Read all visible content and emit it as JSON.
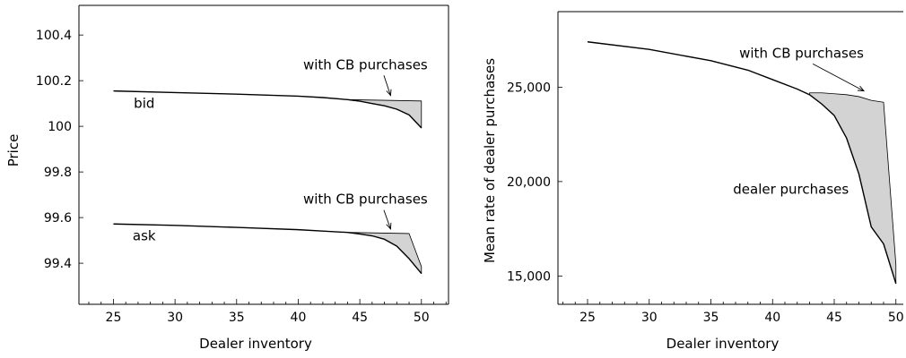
{
  "chart_data": [
    {
      "type": "line",
      "title": "",
      "xlabel": "Dealer inventory",
      "ylabel": "Price",
      "xlim": [
        22.2,
        52.2
      ],
      "ylim": [
        99.22,
        100.53
      ],
      "x_ticks": [
        25,
        30,
        35,
        40,
        45,
        50
      ],
      "x_tick_labels": [
        "25",
        "30",
        "35",
        "40",
        "45",
        "50"
      ],
      "y_ticks": [
        99.4,
        99.6,
        99.8,
        100,
        100.2,
        100.4
      ],
      "y_tick_labels": [
        "99.4",
        "99.6",
        "99.8",
        "100",
        "100.2",
        "100.4"
      ],
      "grid": false,
      "series": [
        {
          "name": "bid",
          "x": [
            25,
            30,
            35,
            40,
            42,
            44,
            45,
            46,
            47,
            48,
            49,
            50
          ],
          "y": [
            100.155,
            100.148,
            100.141,
            100.132,
            100.126,
            100.117,
            100.11,
            100.1,
            100.09,
            100.075,
            100.05,
            99.993
          ],
          "cb_x": [
            44,
            45,
            46,
            47,
            48,
            49,
            50
          ],
          "cb_y": [
            100.117,
            100.116,
            100.115,
            100.114,
            100.113,
            100.112,
            100.111
          ]
        },
        {
          "name": "ask",
          "x": [
            25,
            30,
            35,
            40,
            42,
            44,
            45,
            46,
            47,
            48,
            49,
            50
          ],
          "y": [
            99.572,
            99.566,
            99.557,
            99.547,
            99.541,
            99.535,
            99.528,
            99.52,
            99.505,
            99.475,
            99.42,
            99.355
          ],
          "cb_x": [
            44,
            45,
            46,
            47,
            48,
            49,
            50
          ],
          "cb_y": [
            99.535,
            99.534,
            99.533,
            99.532,
            99.531,
            99.53,
            99.385
          ]
        }
      ],
      "annotations": [
        {
          "text": "bid",
          "x": 27.5,
          "y": 100.1
        },
        {
          "text": "ask",
          "x": 27.5,
          "y": 99.52
        },
        {
          "text": "with CB purchases",
          "x": 40.4,
          "y": 100.27,
          "arrow_to": [
            47.5,
            100.135
          ]
        },
        {
          "text": "with CB purchases",
          "x": 40.4,
          "y": 99.68,
          "arrow_to": [
            47.5,
            99.55
          ]
        }
      ]
    },
    {
      "type": "line",
      "title": "",
      "xlabel": "Dealer inventory",
      "ylabel": "Mean rate of dealer purchases",
      "xlim": [
        22.6,
        50.6
      ],
      "ylim": [
        13500,
        29000
      ],
      "x_ticks": [
        25,
        30,
        35,
        40,
        45,
        50
      ],
      "x_tick_labels": [
        "25",
        "30",
        "35",
        "40",
        "45",
        "50"
      ],
      "y_ticks": [
        15000,
        20000,
        25000
      ],
      "y_tick_labels": [
        "15,000",
        "20,000",
        "25,000"
      ],
      "grid": false,
      "series": [
        {
          "name": "dealer purchases",
          "x": [
            25,
            30,
            35,
            38,
            40,
            42,
            43,
            44,
            45,
            46,
            47,
            48,
            49,
            50
          ],
          "y": [
            27400,
            27000,
            26400,
            25900,
            25400,
            24900,
            24600,
            24100,
            23500,
            22300,
            20400,
            17600,
            16700,
            14600
          ],
          "cb_x": [
            43,
            44,
            45,
            46,
            47,
            48,
            49,
            50
          ],
          "cb_y": [
            24700,
            24700,
            24650,
            24600,
            24500,
            24300,
            24200,
            15600
          ]
        }
      ],
      "annotations": [
        {
          "text": "with CB purchases",
          "x": 37.3,
          "y": 26800,
          "arrow_to": [
            47.4,
            24800
          ]
        },
        {
          "text": "dealer purchases",
          "x": 36.8,
          "y": 19600
        }
      ]
    }
  ]
}
